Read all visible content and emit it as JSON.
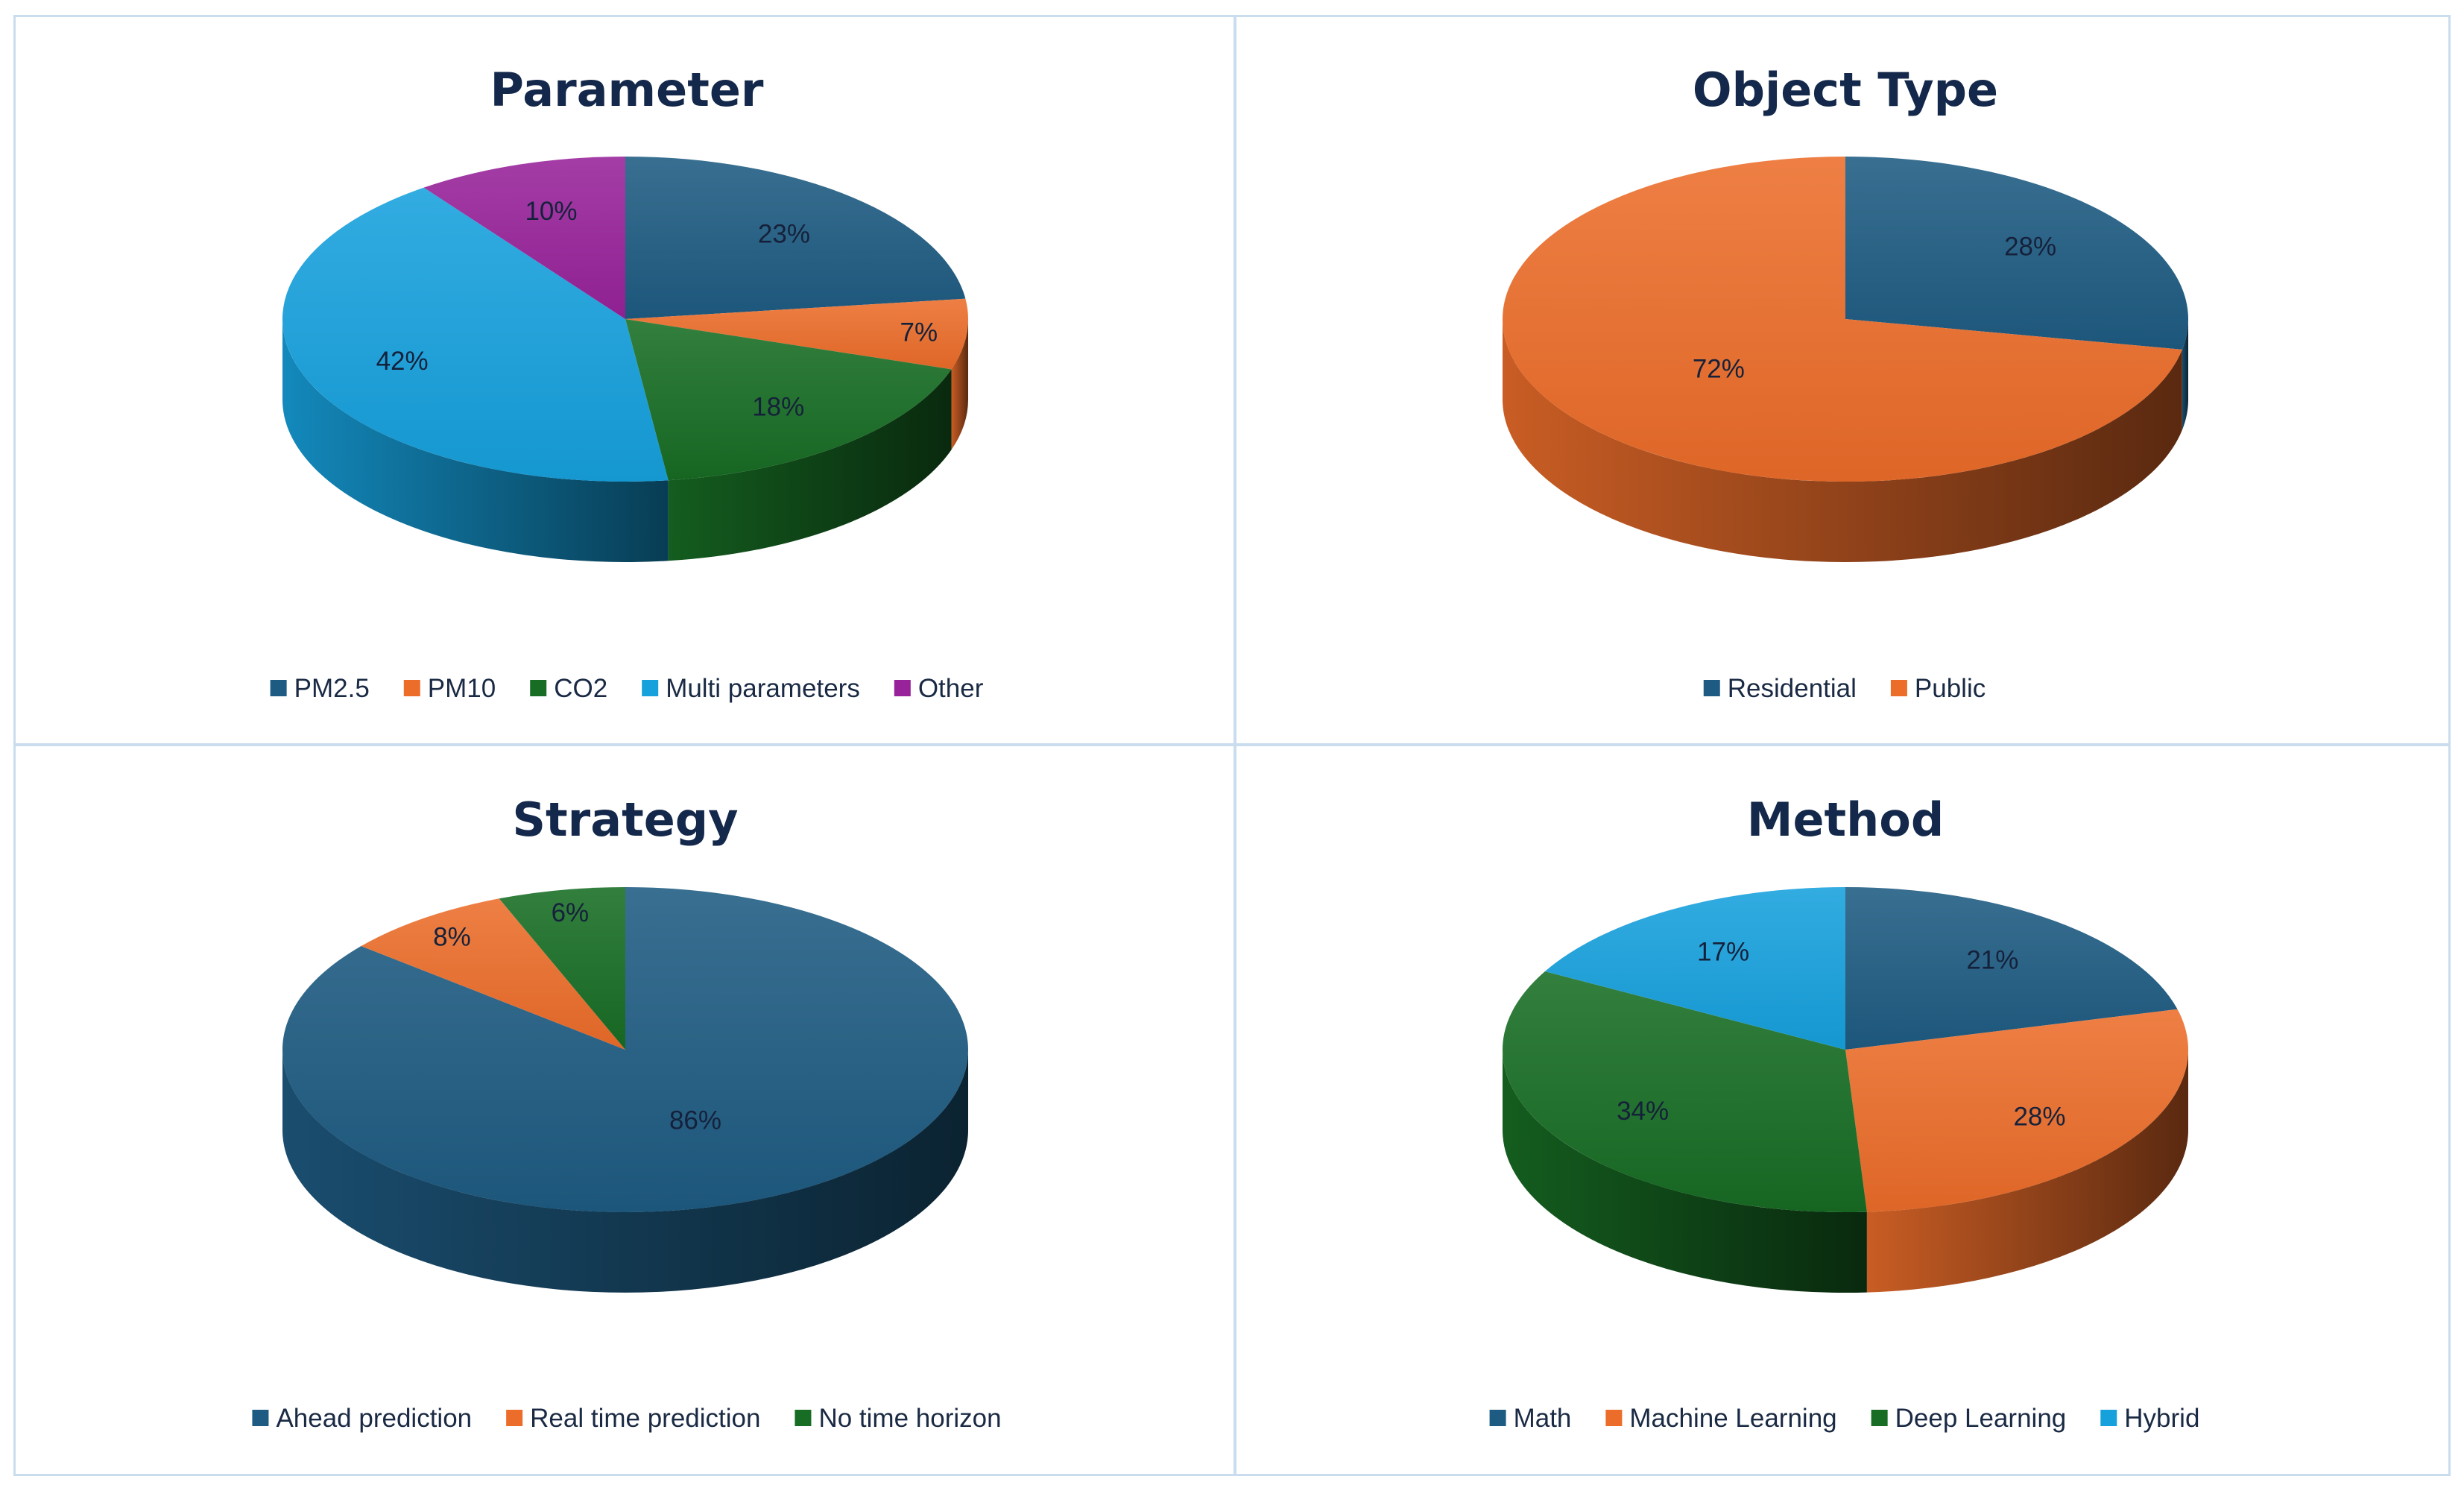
{
  "chart_data": [
    {
      "type": "pie",
      "title": "Parameter",
      "categories": [
        "PM2.5",
        "PM10",
        "CO2",
        "Multi parameters",
        "Other"
      ],
      "values": [
        23,
        7,
        18,
        42,
        10
      ],
      "labels": [
        "23%",
        "7%",
        "18%",
        "42%",
        "10%"
      ],
      "colors": [
        "#1e5b82",
        "#ec6d2a",
        "#176d24",
        "#16a1dd",
        "#98229a"
      ],
      "legend": "bottom"
    },
    {
      "type": "pie",
      "title": "Object Type",
      "categories": [
        "Residential",
        "Public"
      ],
      "values": [
        28,
        72
      ],
      "labels": [
        "28%",
        "72%"
      ],
      "colors": [
        "#1e5b82",
        "#ec6d2a"
      ],
      "legend": "bottom"
    },
    {
      "type": "pie",
      "title": "Strategy",
      "categories": [
        "Ahead prediction",
        "Real time prediction",
        "No time horizon"
      ],
      "values": [
        86,
        8,
        6
      ],
      "labels": [
        "86%",
        "8%",
        "6%"
      ],
      "colors": [
        "#1e5b82",
        "#ec6d2a",
        "#176d24"
      ],
      "legend": "bottom"
    },
    {
      "type": "pie",
      "title": "Method",
      "categories": [
        "Math",
        "Machine Learning",
        "Deep Learning",
        "Hybrid"
      ],
      "values": [
        21,
        28,
        34,
        17
      ],
      "labels": [
        "21%",
        "28%",
        "34%",
        "17%"
      ],
      "colors": [
        "#1e5b82",
        "#ec6d2a",
        "#176d24",
        "#16a1dd"
      ],
      "legend": "bottom"
    }
  ]
}
